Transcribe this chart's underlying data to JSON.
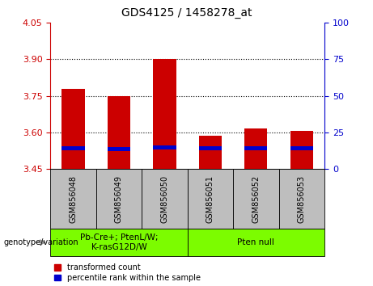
{
  "title": "GDS4125 / 1458278_at",
  "samples": [
    "GSM856048",
    "GSM856049",
    "GSM856050",
    "GSM856051",
    "GSM856052",
    "GSM856053"
  ],
  "red_values": [
    3.78,
    3.75,
    3.9,
    3.585,
    3.615,
    3.605
  ],
  "blue_values": [
    3.535,
    3.53,
    3.538,
    3.535,
    3.535,
    3.535
  ],
  "ylim_left": [
    3.45,
    4.05
  ],
  "ylim_right": [
    0,
    100
  ],
  "yticks_left": [
    3.45,
    3.6,
    3.75,
    3.9,
    4.05
  ],
  "yticks_right": [
    0,
    25,
    50,
    75,
    100
  ],
  "gridlines": [
    3.6,
    3.75,
    3.9
  ],
  "bar_width": 0.5,
  "group1_label": "Pb-Cre+; PtenL/W;\nK-rasG12D/W",
  "group2_label": "Pten null",
  "group_bg_color": "#7CFC00",
  "sample_bg_color": "#BEBEBE",
  "red_color": "#CC0000",
  "blue_color": "#0000CC",
  "blue_bar_height": 0.018,
  "base": 3.45,
  "legend_red": "transformed count",
  "legend_blue": "percentile rank within the sample",
  "right_axis_color": "#0000CC",
  "left_axis_color": "#CC0000",
  "title_fontsize": 10,
  "tick_fontsize": 8,
  "sample_fontsize": 7,
  "group_fontsize": 7.5,
  "legend_fontsize": 7,
  "genotype_label": "genotype/variation"
}
